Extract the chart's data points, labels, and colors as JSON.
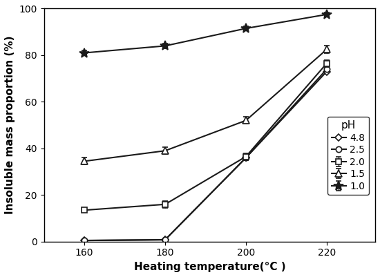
{
  "x": [
    160,
    180,
    200,
    220
  ],
  "series": [
    {
      "label": "4.8",
      "y": [
        0.5,
        0.8,
        36.0,
        73.0
      ],
      "yerr": [
        null,
        null,
        null,
        null
      ],
      "marker": "D",
      "markersize": 5,
      "markerfacecolor": "white",
      "color": "#1a1a1a"
    },
    {
      "label": "2.5",
      "y": [
        0.5,
        0.8,
        36.0,
        74.0
      ],
      "yerr": [
        null,
        null,
        null,
        null
      ],
      "marker": "o",
      "markersize": 6,
      "markerfacecolor": "white",
      "color": "#1a1a1a"
    },
    {
      "label": "2.0",
      "y": [
        13.5,
        16.0,
        36.5,
        76.5
      ],
      "yerr": [
        0.8,
        1.5,
        1.5,
        1.5
      ],
      "marker": "s",
      "markersize": 6,
      "markerfacecolor": "white",
      "color": "#1a1a1a"
    },
    {
      "label": "1.5",
      "y": [
        34.5,
        39.0,
        52.0,
        82.5
      ],
      "yerr": [
        1.5,
        1.5,
        1.5,
        1.5
      ],
      "marker": "^",
      "markersize": 7,
      "markerfacecolor": "white",
      "color": "#1a1a1a"
    },
    {
      "label": "1.0",
      "y": [
        81.0,
        84.0,
        91.5,
        97.5
      ],
      "yerr": [
        1.0,
        1.0,
        1.0,
        1.0
      ],
      "marker": "*",
      "markersize": 10,
      "markerfacecolor": "#1a1a1a",
      "color": "#1a1a1a"
    }
  ],
  "xlabel": "Heating temperature(°C )",
  "ylabel": "Insoluble mass proportion (%)",
  "xlim": [
    150,
    232
  ],
  "ylim": [
    0,
    100
  ],
  "xticks": [
    160,
    180,
    200,
    220
  ],
  "yticks": [
    0,
    20,
    40,
    60,
    80,
    100
  ],
  "legend_title": "pH",
  "legend_title_fontsize": 11,
  "legend_fontsize": 10,
  "axis_label_fontsize": 11,
  "tick_fontsize": 10,
  "linewidth": 1.5,
  "background_color": "#ffffff"
}
